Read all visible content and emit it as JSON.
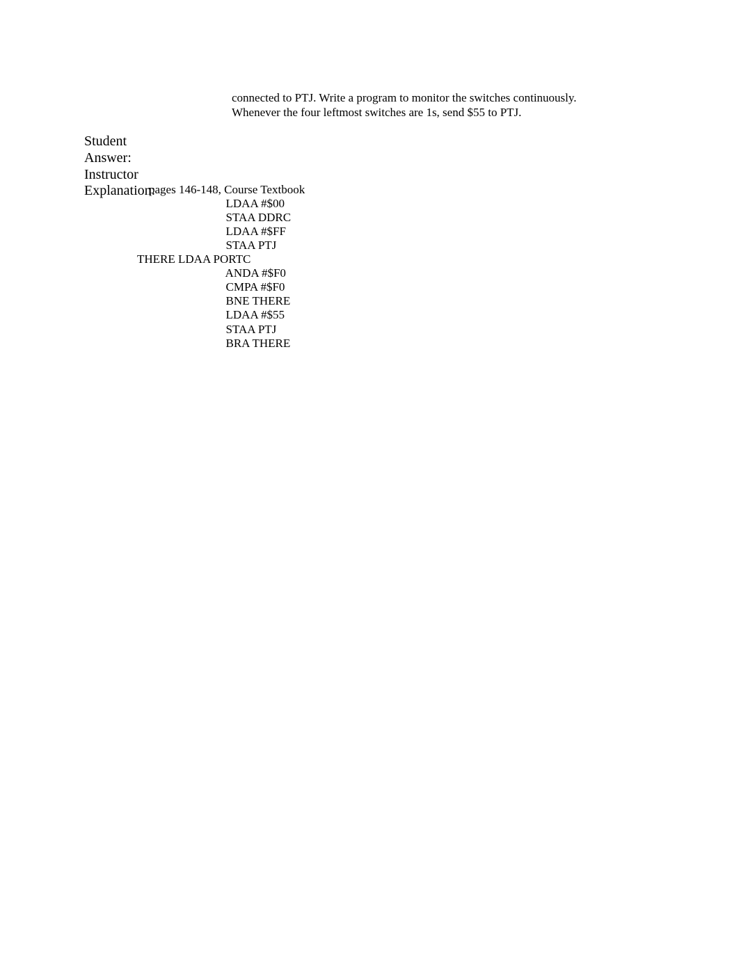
{
  "question": {
    "line1": "connected to PTJ. Write a program to monitor the switches continuously.",
    "line2": "Whenever the four leftmost switches are 1s, send $55 to PTJ."
  },
  "labels": {
    "student": "Student",
    "answer": "Answer:",
    "instructor": "Instructor",
    "explanation": "Explanation:"
  },
  "explanation": {
    "ref": "pages 146-148, Course Textbook",
    "code": {
      "l1": "                              LDAA #$00",
      "l2": "                              STAA DDRC",
      "l3": "                              LDAA #$FF",
      "l4": "                              STAA PTJ",
      "l5": "THERE LDAA PORTC",
      "l6": "                              ANDA #$F0",
      "l7": "                              CMPA #$F0",
      "l8": "                              BNE THERE",
      "l9": "                              LDAA #$55",
      "l10": "                              STAA PTJ",
      "l11": "                              BRA THERE"
    }
  }
}
